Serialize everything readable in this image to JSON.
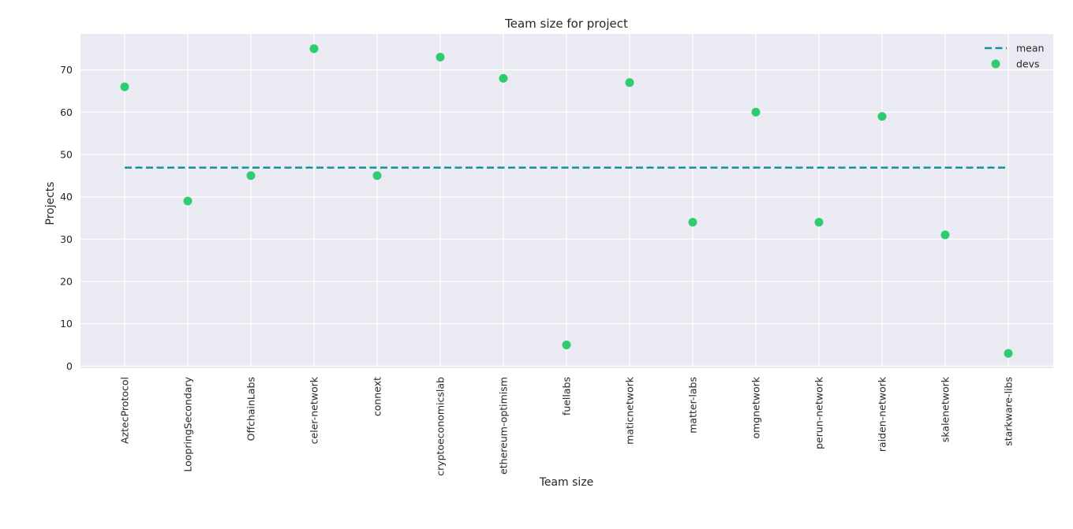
{
  "chart_data": {
    "type": "scatter",
    "title": "Team size for project",
    "xlabel": "Team size",
    "ylabel": "Projects",
    "categories": [
      "AztecProtocol",
      "LoopringSecondary",
      "OffchainLabs",
      "celer-network",
      "connext",
      "cryptoeconomicslab",
      "ethereum-optimism",
      "fuellabs",
      "maticnetwork",
      "matter-labs",
      "omgnetwork",
      "perun-network",
      "raiden-network",
      "skalenetwork",
      "starkware-libs"
    ],
    "series": [
      {
        "name": "devs",
        "values": [
          66,
          39,
          45,
          75,
          45,
          73,
          68,
          5,
          67,
          34,
          60,
          34,
          59,
          31,
          3
        ],
        "color": "#2ecc71",
        "style": "markers"
      },
      {
        "name": "mean",
        "values": [
          46.9,
          46.9,
          46.9,
          46.9,
          46.9,
          46.9,
          46.9,
          46.9,
          46.9,
          46.9,
          46.9,
          46.9,
          46.9,
          46.9,
          46.9
        ],
        "color": "#13919b",
        "style": "dashed-line"
      }
    ],
    "yticks": [
      0,
      10,
      20,
      30,
      40,
      50,
      60,
      70
    ],
    "ylim": [
      -0.5,
      78.5
    ],
    "grid": true,
    "legend_position": "top-right",
    "background": "#eaeaf2"
  }
}
